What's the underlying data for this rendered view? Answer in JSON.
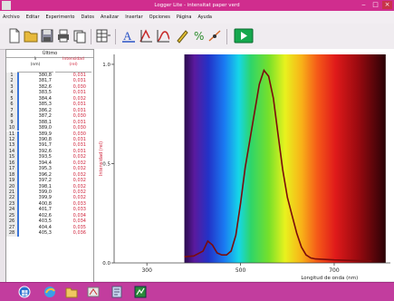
{
  "window": {
    "title": "Logger Lite - intensitat paper verd"
  },
  "menu": [
    "Archivo",
    "Editar",
    "Experimento",
    "Datos",
    "Analizar",
    "Insertar",
    "Opciones",
    "Página",
    "Ayuda"
  ],
  "toolbar": {
    "icons": [
      "new-file-icon",
      "open-folder-icon",
      "save-icon",
      "print-icon",
      "copy-icon",
      "table-view-icon",
      "text-annotation-icon",
      "autoscale-icon",
      "curve-fit-icon",
      "draw-pen-icon",
      "stats-icon",
      "tangent-icon",
      "collect-play-icon"
    ],
    "status_text": "",
    "colors": {
      "accent": "#d02d8e",
      "play": "#16a84e",
      "text_annot": "#2c55c6",
      "curve": "#c72a2a"
    }
  },
  "table": {
    "title": "Último",
    "headers": {
      "lambda": "λ\n(nm)",
      "intensity": "Intensidad\n(rel)"
    },
    "rows": [
      {
        "n": "1",
        "wl": "380,8",
        "i": "0,031"
      },
      {
        "n": "2",
        "wl": "381,7",
        "i": "0,031"
      },
      {
        "n": "3",
        "wl": "382,6",
        "i": "0,030"
      },
      {
        "n": "4",
        "wl": "383,5",
        "i": "0,031"
      },
      {
        "n": "5",
        "wl": "384,4",
        "i": "0,032"
      },
      {
        "n": "6",
        "wl": "385,3",
        "i": "0,031"
      },
      {
        "n": "7",
        "wl": "386,2",
        "i": "0,031"
      },
      {
        "n": "8",
        "wl": "387,2",
        "i": "0,030"
      },
      {
        "n": "9",
        "wl": "388,1",
        "i": "0,031"
      },
      {
        "n": "10",
        "wl": "389,0",
        "i": "0,030"
      },
      {
        "n": "11",
        "wl": "389,9",
        "i": "0,030"
      },
      {
        "n": "12",
        "wl": "390,8",
        "i": "0,031"
      },
      {
        "n": "13",
        "wl": "391,7",
        "i": "0,031"
      },
      {
        "n": "14",
        "wl": "392,6",
        "i": "0,031"
      },
      {
        "n": "15",
        "wl": "393,5",
        "i": "0,032"
      },
      {
        "n": "16",
        "wl": "394,4",
        "i": "0,032"
      },
      {
        "n": "17",
        "wl": "395,3",
        "i": "0,032"
      },
      {
        "n": "18",
        "wl": "396,2",
        "i": "0,032"
      },
      {
        "n": "19",
        "wl": "397,2",
        "i": "0,032"
      },
      {
        "n": "20",
        "wl": "398,1",
        "i": "0,032"
      },
      {
        "n": "21",
        "wl": "399,0",
        "i": "0,032"
      },
      {
        "n": "22",
        "wl": "399,9",
        "i": "0,032"
      },
      {
        "n": "23",
        "wl": "400,8",
        "i": "0,033"
      },
      {
        "n": "24",
        "wl": "401,7",
        "i": "0,033"
      },
      {
        "n": "25",
        "wl": "402,6",
        "i": "0,034"
      },
      {
        "n": "26",
        "wl": "403,5",
        "i": "0,034"
      },
      {
        "n": "27",
        "wl": "404,4",
        "i": "0,035"
      },
      {
        "n": "28",
        "wl": "405,3",
        "i": "0,036"
      }
    ]
  },
  "chart_data": {
    "type": "line",
    "xlabel": "Longitud de onda (nm)",
    "ylabel": "Intensidad (rel)",
    "xlim": [
      230,
      820
    ],
    "ylim": [
      0,
      1.05
    ],
    "xticks": [
      "300",
      "500",
      "700"
    ],
    "yticks": [
      "0.0",
      "0.5",
      "1.0"
    ],
    "grid": false,
    "background": "visible spectrum band from ~380 to ~800 nm",
    "series": [
      {
        "x": [
          380,
          400,
          420,
          430,
          440,
          450,
          460,
          470,
          480,
          490,
          500,
          510,
          520,
          530,
          540,
          550,
          560,
          570,
          580,
          590,
          600,
          610,
          620,
          630,
          640,
          650,
          660,
          700,
          780
        ],
        "y": [
          0.031,
          0.035,
          0.06,
          0.11,
          0.09,
          0.05,
          0.04,
          0.04,
          0.06,
          0.14,
          0.3,
          0.48,
          0.62,
          0.76,
          0.9,
          0.97,
          0.94,
          0.83,
          0.65,
          0.47,
          0.33,
          0.24,
          0.15,
          0.08,
          0.04,
          0.025,
          0.02,
          0.015,
          0.01
        ]
      }
    ]
  },
  "taskbar": {
    "icons": [
      "start-orb-icon",
      "explorer-icon",
      "folder-icon",
      "paint-icon",
      "document-icon",
      "logger-icon"
    ]
  }
}
